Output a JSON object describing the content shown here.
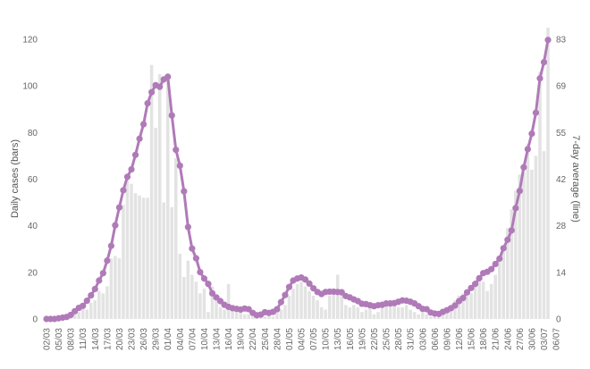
{
  "chart_data": {
    "type": "bar+line",
    "ylabel_left": "Daily cases (bars)",
    "ylabel_right": "7-day average (line)",
    "y_left_ticks": [
      "0",
      "20",
      "40",
      "60",
      "80",
      "100",
      "120"
    ],
    "y_right_ticks": [
      "0",
      "14",
      "28",
      "42",
      "55",
      "69",
      "83"
    ],
    "ylim_left": [
      0,
      120
    ],
    "ylim_right": [
      0,
      83
    ],
    "x_tick_labels": [
      "02/03",
      "05/03",
      "08/03",
      "11/03",
      "14/03",
      "17/03",
      "20/03",
      "23/03",
      "26/03",
      "29/03",
      "01/04",
      "04/04",
      "07/04",
      "10/04",
      "13/04",
      "16/04",
      "19/04",
      "22/04",
      "25/04",
      "28/04",
      "01/05",
      "04/05",
      "07/05",
      "10/05",
      "13/05",
      "16/05",
      "19/05",
      "22/05",
      "25/05",
      "28/05",
      "31/05",
      "03/06",
      "06/06",
      "09/06",
      "12/06",
      "15/06",
      "18/06",
      "21/06",
      "24/06",
      "27/06",
      "30/06",
      "03/07",
      "06/07"
    ],
    "x_start": "02/03",
    "x_end": "07/07",
    "grid": false,
    "colors": {
      "bars": "#e3e3e3",
      "line": "#b07ab8",
      "text": "#666666"
    },
    "series": [
      {
        "kind": "bar",
        "values": [
          0,
          0,
          0,
          0,
          1,
          1,
          2,
          3,
          3,
          5,
          4,
          7,
          8,
          12,
          11,
          14,
          26,
          27,
          26,
          49,
          60,
          58,
          54,
          53,
          52,
          52,
          109,
          82,
          105,
          50,
          102,
          48,
          69,
          28,
          18,
          25,
          19,
          16,
          11,
          13,
          3,
          14,
          8,
          5,
          4,
          15,
          6,
          3,
          3,
          2,
          2,
          2,
          3,
          2,
          1,
          2,
          1,
          3,
          4,
          6,
          10,
          13,
          15,
          16,
          14,
          12,
          10,
          8,
          5,
          4,
          10,
          12,
          19,
          13,
          6,
          5,
          6,
          5,
          3,
          4,
          6,
          2,
          3,
          5,
          7,
          8,
          6,
          5,
          5,
          6,
          4,
          3,
          2,
          3,
          2,
          1,
          1,
          2,
          3,
          5,
          6,
          8,
          10,
          11,
          12,
          11,
          14,
          17,
          16,
          12,
          15,
          19,
          25,
          29,
          39,
          47,
          55,
          62,
          63,
          75,
          64,
          70,
          106,
          72,
          125
        ]
      },
      {
        "kind": "line",
        "values": [
          0.0,
          0.0,
          0.0,
          0.2,
          0.4,
          0.6,
          1.2,
          2.3,
          3.3,
          3.9,
          5.4,
          7.0,
          8.9,
          11.4,
          13.6,
          17.3,
          21.7,
          27.8,
          33.1,
          38.2,
          42.2,
          44.4,
          48.7,
          53.5,
          57.8,
          64.0,
          67.3,
          69.4,
          68.9,
          71.1,
          71.9,
          60.4,
          50.2,
          45.5,
          37.9,
          27.3,
          20.9,
          18.0,
          13.9,
          12.0,
          10.4,
          7.6,
          6.4,
          5.3,
          4.2,
          3.6,
          3.2,
          3.0,
          2.8,
          3.1,
          2.9,
          1.8,
          1.1,
          1.3,
          2.0,
          1.8,
          2.1,
          2.9,
          5.0,
          7.1,
          9.5,
          11.4,
          12.0,
          12.3,
          11.7,
          10.5,
          9.1,
          8.0,
          7.4,
          8.0,
          8.1,
          8.1,
          8.0,
          7.9,
          6.8,
          6.4,
          5.8,
          5.3,
          4.5,
          4.4,
          4.1,
          3.8,
          4.1,
          4.2,
          4.6,
          4.6,
          4.7,
          5.1,
          5.5,
          5.4,
          5.1,
          4.6,
          3.8,
          3.0,
          2.9,
          1.9,
          1.6,
          1.5,
          2.1,
          2.6,
          3.2,
          4.0,
          5.3,
          6.2,
          7.9,
          9.2,
          10.4,
          12.1,
          13.6,
          14.0,
          14.8,
          16.3,
          17.9,
          21.0,
          23.5,
          26.3,
          32.9,
          38.0,
          45.0,
          50.4,
          55.0,
          61.2,
          71.4,
          76.2,
          82.8
        ]
      }
    ]
  }
}
